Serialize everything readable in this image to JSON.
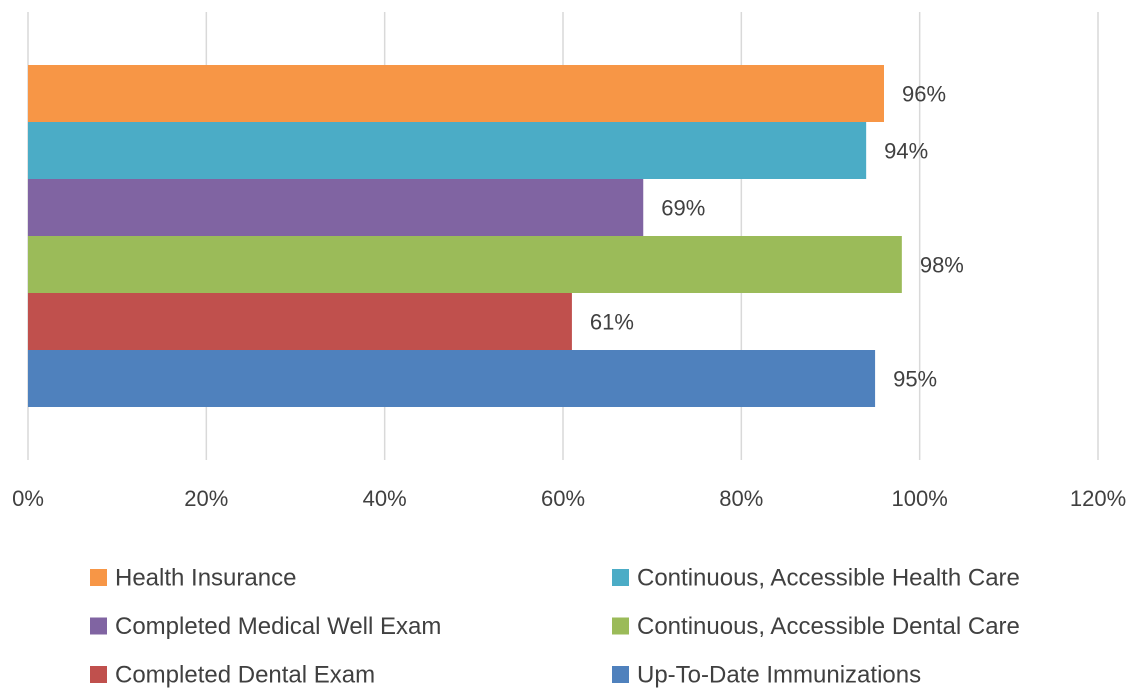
{
  "chart_data": {
    "type": "bar",
    "orientation": "horizontal",
    "series": [
      {
        "name": "Health Insurance",
        "color": "#f79646",
        "values": [
          96
        ],
        "value_labels": [
          "96%"
        ]
      },
      {
        "name": "Continuous, Accessible Health Care",
        "color": "#4bacc6",
        "values": [
          94
        ],
        "value_labels": [
          "94%"
        ]
      },
      {
        "name": "Completed Medical Well Exam",
        "color": "#8064a2",
        "values": [
          69
        ],
        "value_labels": [
          "69%"
        ]
      },
      {
        "name": "Continuous, Accessible Dental Care",
        "color": "#9bbb59",
        "values": [
          98
        ],
        "value_labels": [
          "98%"
        ]
      },
      {
        "name": "Completed Dental Exam",
        "color": "#c0504d",
        "values": [
          61
        ],
        "value_labels": [
          "61%"
        ]
      },
      {
        "name": "Up-To-Date Immunizations",
        "color": "#4f81bd",
        "values": [
          95
        ],
        "value_labels": [
          "95%"
        ]
      }
    ],
    "xlim": [
      0,
      120
    ],
    "xticks": [
      {
        "value": 0,
        "label": "0%"
      },
      {
        "value": 20,
        "label": "20%"
      },
      {
        "value": 40,
        "label": "40%"
      },
      {
        "value": 60,
        "label": "60%"
      },
      {
        "value": 80,
        "label": "80%"
      },
      {
        "value": 100,
        "label": "100%"
      },
      {
        "value": 120,
        "label": "120%"
      }
    ],
    "grid": true,
    "legend": "bottom"
  }
}
